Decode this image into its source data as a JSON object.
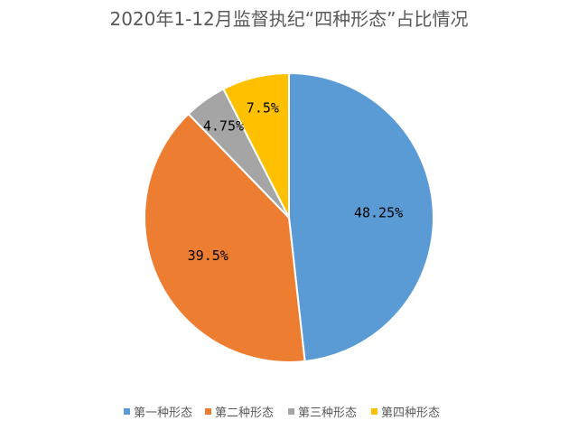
{
  "chart_data": {
    "type": "pie",
    "title": "2020年1-12月监督执纪“四种形态”占比情况",
    "categories": [
      "第一种形态",
      "第二种形态",
      "第三种形态",
      "第四种形态"
    ],
    "values": [
      48.25,
      39.5,
      4.75,
      7.5
    ],
    "data_labels": [
      "48.25%",
      "39.5%",
      "4.75%",
      "7.5%"
    ],
    "colors": [
      "#5B9BD5",
      "#ED7D31",
      "#A5A5A5",
      "#FFC000"
    ],
    "legend_position": "bottom"
  }
}
